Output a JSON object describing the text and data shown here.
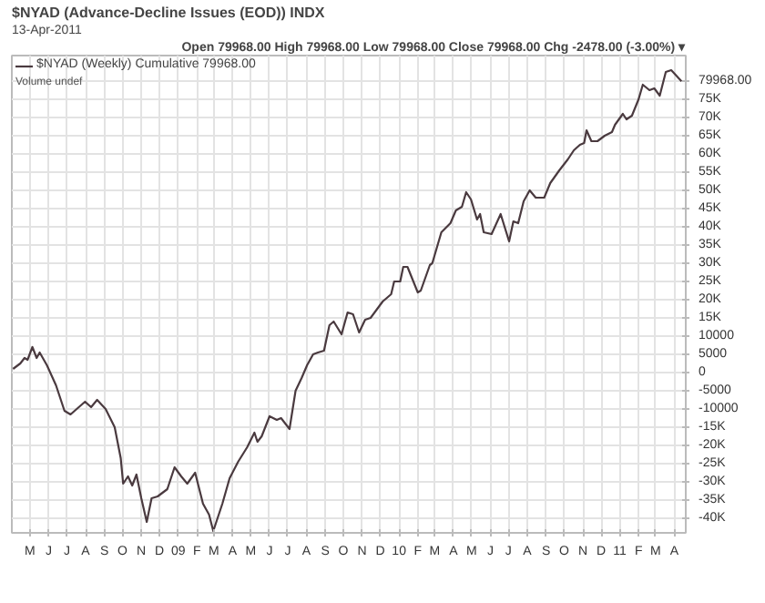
{
  "chart_data": {
    "type": "line",
    "title": "$NYAD (Advance-Decline Issues (EOD)) INDX",
    "subtitle": "13-Apr-2011",
    "annotations": [
      "Open 79968.00 High 79968.00 Low 79968.00 Close 79968.00 Chg -2478.00 (-3.00%) ▾",
      "Volume undef"
    ],
    "grid": true,
    "legend": "top left",
    "marker": "none",
    "line_style": "solid",
    "xlim": [
      "2008-04-01",
      "2011-04-20"
    ],
    "xticks": [
      {
        "value": "2008-05",
        "label": "M"
      },
      {
        "value": "2008-06",
        "label": "J"
      },
      {
        "value": "2008-07",
        "label": "J"
      },
      {
        "value": "2008-08",
        "label": "A"
      },
      {
        "value": "2008-09",
        "label": "S"
      },
      {
        "value": "2008-10",
        "label": "O"
      },
      {
        "value": "2008-11",
        "label": "N"
      },
      {
        "value": "2008-12",
        "label": "D"
      },
      {
        "value": "2009-01",
        "label": "09"
      },
      {
        "value": "2009-02",
        "label": "F"
      },
      {
        "value": "2009-03",
        "label": "M"
      },
      {
        "value": "2009-04",
        "label": "A"
      },
      {
        "value": "2009-05",
        "label": "M"
      },
      {
        "value": "2009-06",
        "label": "J"
      },
      {
        "value": "2009-07",
        "label": "J"
      },
      {
        "value": "2009-08",
        "label": "A"
      },
      {
        "value": "2009-09",
        "label": "S"
      },
      {
        "value": "2009-10",
        "label": "O"
      },
      {
        "value": "2009-11",
        "label": "N"
      },
      {
        "value": "2009-12",
        "label": "D"
      },
      {
        "value": "2010-01",
        "label": "10"
      },
      {
        "value": "2010-02",
        "label": "F"
      },
      {
        "value": "2010-03",
        "label": "M"
      },
      {
        "value": "2010-04",
        "label": "A"
      },
      {
        "value": "2010-05",
        "label": "M"
      },
      {
        "value": "2010-06",
        "label": "J"
      },
      {
        "value": "2010-07",
        "label": "J"
      },
      {
        "value": "2010-08",
        "label": "A"
      },
      {
        "value": "2010-09",
        "label": "S"
      },
      {
        "value": "2010-10",
        "label": "O"
      },
      {
        "value": "2010-11",
        "label": "N"
      },
      {
        "value": "2010-12",
        "label": "D"
      },
      {
        "value": "2011-01",
        "label": "11"
      },
      {
        "value": "2011-02",
        "label": "F"
      },
      {
        "value": "2011-03",
        "label": "M"
      },
      {
        "value": "2011-04",
        "label": "A"
      }
    ],
    "ylim": [
      -44000,
      87000
    ],
    "yticks": [
      {
        "value": -40000,
        "label": "-40K"
      },
      {
        "value": -35000,
        "label": "-35K"
      },
      {
        "value": -30000,
        "label": "-30K"
      },
      {
        "value": -25000,
        "label": "-25K"
      },
      {
        "value": -20000,
        "label": "-20K"
      },
      {
        "value": -15000,
        "label": "-15K"
      },
      -10000,
      -5000,
      0,
      5000,
      10000,
      {
        "value": 15000,
        "label": "15K"
      },
      {
        "value": 20000,
        "label": "20K"
      },
      {
        "value": 25000,
        "label": "25K"
      },
      {
        "value": 30000,
        "label": "30K"
      },
      {
        "value": 35000,
        "label": "35K"
      },
      {
        "value": 40000,
        "label": "40K"
      },
      {
        "value": 45000,
        "label": "45K"
      },
      {
        "value": 50000,
        "label": "50K"
      },
      {
        "value": 55000,
        "label": "55K"
      },
      {
        "value": 60000,
        "label": "60K"
      },
      {
        "value": 65000,
        "label": "65K"
      },
      {
        "value": 70000,
        "label": "70K"
      },
      {
        "value": 75000,
        "label": "75K"
      },
      {
        "value": 79968,
        "label": "79968.00"
      }
    ],
    "series": [
      {
        "name": "$NYAD (Weekly) Cumulative 79968.00",
        "color": "#4a3a3f",
        "x": [
          "2008-04-03",
          "2008-04-15",
          "2008-04-22",
          "2008-04-27",
          "2008-05-05",
          "2008-05-12",
          "2008-05-17",
          "2008-05-29",
          "2008-06-13",
          "2008-06-27",
          "2008-07-07",
          "2008-07-31",
          "2008-08-10",
          "2008-08-20",
          "2008-09-03",
          "2008-09-18",
          "2008-09-28",
          "2008-10-02",
          "2008-10-10",
          "2008-10-17",
          "2008-10-24",
          "2008-11-01",
          "2008-11-10",
          "2008-11-18",
          "2008-11-28",
          "2008-12-14",
          "2008-12-26",
          "2009-01-06",
          "2009-01-16",
          "2009-01-29",
          "2009-02-11",
          "2009-02-21",
          "2009-02-28",
          "2009-03-15",
          "2009-03-27",
          "2009-04-10",
          "2009-04-25",
          "2009-05-07",
          "2009-05-12",
          "2009-05-19",
          "2009-06-01",
          "2009-06-13",
          "2009-06-20",
          "2009-07-04",
          "2009-07-14",
          "2009-07-24",
          "2009-08-02",
          "2009-08-12",
          "2009-08-20",
          "2009-08-30",
          "2009-09-08",
          "2009-09-15",
          "2009-09-28",
          "2009-10-08",
          "2009-10-17",
          "2009-10-27",
          "2009-11-06",
          "2009-11-15",
          "2009-12-05",
          "2009-12-19",
          "2009-12-24",
          "2010-01-03",
          "2010-01-08",
          "2010-01-15",
          "2010-02-01",
          "2010-02-06",
          "2010-02-21",
          "2010-02-25",
          "2010-03-12",
          "2010-03-27",
          "2010-04-05",
          "2010-04-15",
          "2010-04-22",
          "2010-04-30",
          "2010-05-10",
          "2010-05-15",
          "2010-05-21",
          "2010-06-03",
          "2010-06-18",
          "2010-07-02",
          "2010-07-09",
          "2010-07-17",
          "2010-07-26",
          "2010-08-05",
          "2010-08-15",
          "2010-08-29",
          "2010-09-08",
          "2010-09-23",
          "2010-10-07",
          "2010-10-17",
          "2010-10-27",
          "2010-11-03",
          "2010-11-07",
          "2010-11-15",
          "2010-11-25",
          "2010-12-07",
          "2010-12-19",
          "2010-12-24",
          "2011-01-06",
          "2011-01-12",
          "2011-01-21",
          "2011-02-01",
          "2011-02-08",
          "2011-02-19",
          "2011-02-27",
          "2011-03-08",
          "2011-03-18",
          "2011-03-27",
          "2011-04-13"
        ],
        "values": [
          1000,
          2500,
          4000,
          3500,
          7000,
          4000,
          5500,
          2000,
          -3500,
          -10500,
          -11500,
          -8000,
          -9500,
          -7500,
          -10000,
          -15000,
          -23500,
          -30500,
          -28500,
          -31000,
          -28000,
          -34500,
          -41000,
          -34500,
          -34000,
          -32000,
          -26000,
          -28500,
          -30500,
          -27500,
          -36000,
          -39000,
          -43500,
          -36000,
          -29000,
          -24500,
          -20500,
          -16500,
          -19000,
          -17500,
          -12000,
          -13000,
          -12500,
          -15500,
          -5000,
          -1500,
          2000,
          5000,
          5500,
          6000,
          13000,
          14000,
          10500,
          16500,
          16000,
          11000,
          14500,
          15000,
          19500,
          21500,
          25000,
          25000,
          29000,
          29000,
          22000,
          22500,
          29500,
          30000,
          38500,
          41000,
          44500,
          45500,
          49500,
          47500,
          42000,
          43500,
          38500,
          38000,
          43500,
          36000,
          41500,
          41000,
          47000,
          50000,
          48000,
          48000,
          52000,
          55500,
          58500,
          61000,
          62500,
          63000,
          66500,
          63500,
          63500,
          65000,
          66000,
          68000,
          71000,
          69500,
          70500,
          75000,
          79000,
          77500,
          78000,
          76000,
          82500,
          83000,
          79968
        ]
      }
    ]
  }
}
